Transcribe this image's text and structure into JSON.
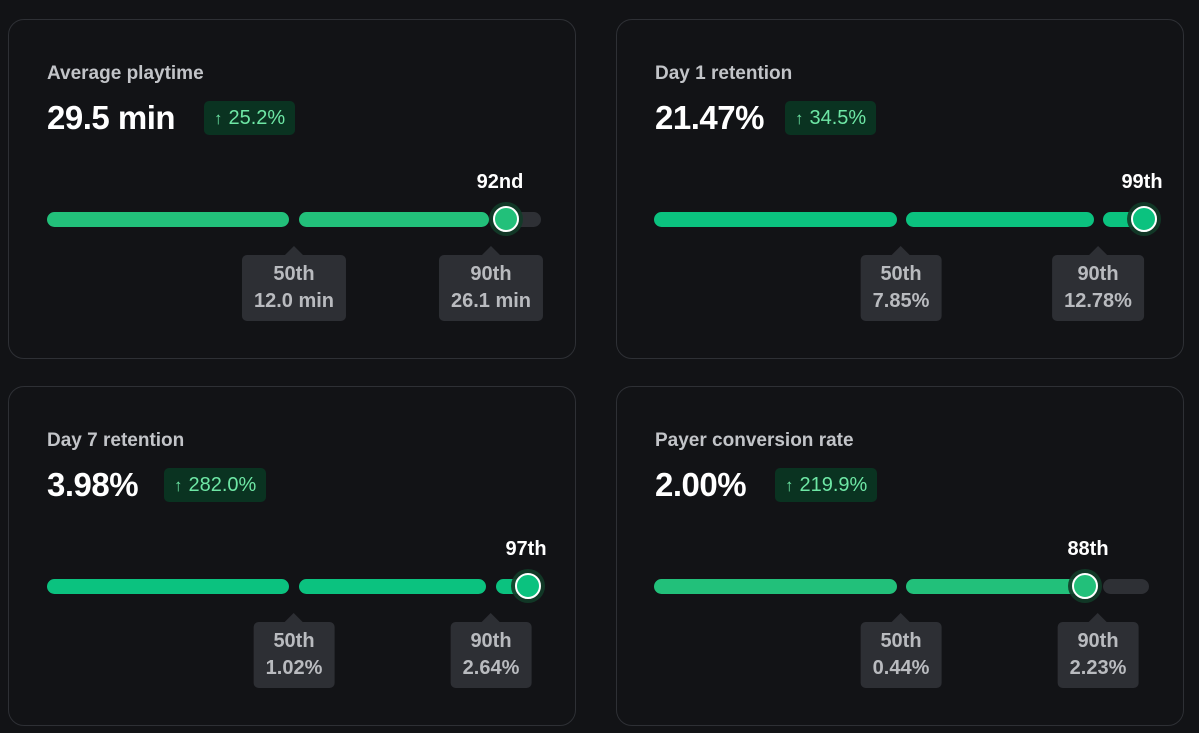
{
  "colors": {
    "background": "#121316",
    "card_border": "#2e3035",
    "track": "#2e3035",
    "bar_normal": "#22c07a",
    "bar_bright": "#0bc27f",
    "badge_bg": "#0a3321",
    "badge_text": "#6ee7a5"
  },
  "cards": [
    {
      "title": "Average playtime",
      "value": "29.5 min",
      "change": "25.2%",
      "change_icon": "arrow-up-icon",
      "percentile_label": "92nd",
      "percentile": 92,
      "p50": {
        "label": "50th",
        "value": "12.0 min"
      },
      "p90": {
        "label": "90th",
        "value": "26.1 min"
      }
    },
    {
      "title": "Day 1 retention",
      "value": "21.47%",
      "change": "34.5%",
      "change_icon": "arrow-up-icon",
      "percentile_label": "99th",
      "percentile": 99,
      "p50": {
        "label": "50th",
        "value": "7.85%"
      },
      "p90": {
        "label": "90th",
        "value": "12.78%"
      }
    },
    {
      "title": "Day 7 retention",
      "value": "3.98%",
      "change": "282.0%",
      "change_icon": "arrow-up-icon",
      "percentile_label": "97th",
      "percentile": 97,
      "p50": {
        "label": "50th",
        "value": "1.02%"
      },
      "p90": {
        "label": "90th",
        "value": "2.64%"
      }
    },
    {
      "title": "Payer conversion rate",
      "value": "2.00%",
      "change": "219.9%",
      "change_icon": "arrow-up-icon",
      "percentile_label": "88th",
      "percentile": 88,
      "p50": {
        "label": "50th",
        "value": "0.44%"
      },
      "p90": {
        "label": "90th",
        "value": "2.23%"
      }
    }
  ]
}
